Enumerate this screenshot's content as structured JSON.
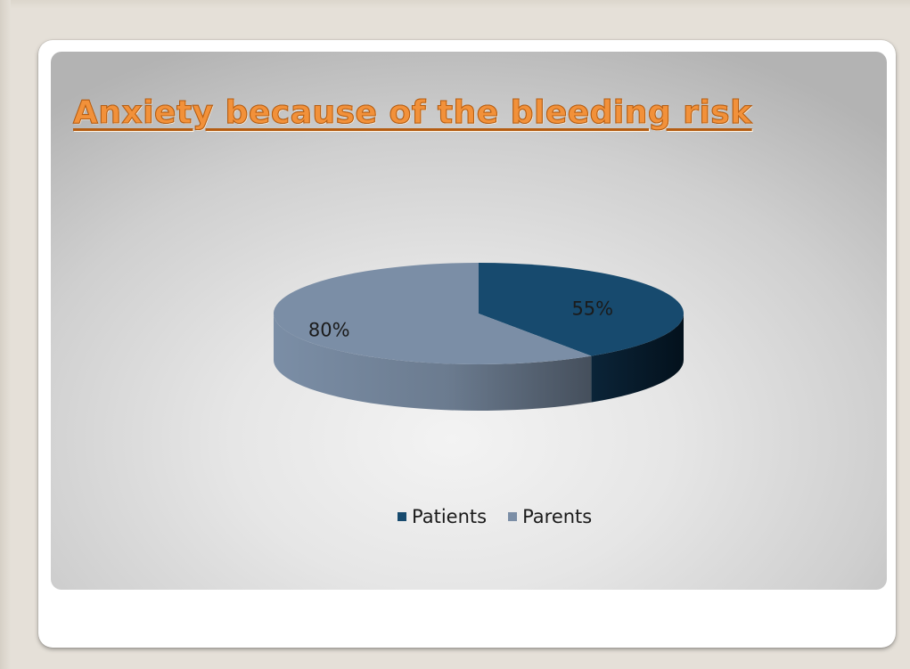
{
  "chart_data": {
    "type": "pie",
    "title": "Anxiety because of the bleeding risk",
    "categories": [
      "Patients",
      "Parents"
    ],
    "values": [
      55,
      80
    ],
    "labels": [
      "55%",
      "80%"
    ],
    "colors": [
      "#174a6e",
      "#7b8ea6"
    ],
    "side_colors": [
      "#081c2c",
      "#4a5666"
    ],
    "legend_position": "bottom",
    "three_d": true
  }
}
